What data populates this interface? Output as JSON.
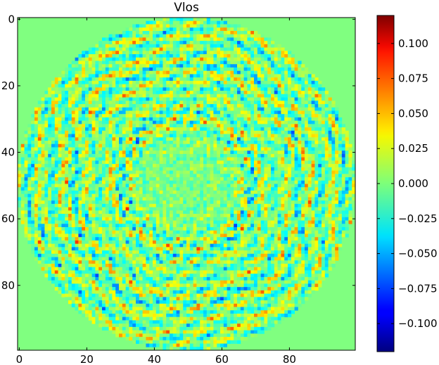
{
  "chart_data": {
    "type": "heatmap",
    "title": "Vlos",
    "xlabel": "",
    "ylabel": "",
    "grid": false,
    "colormap": "jet",
    "shape": [
      100,
      100
    ],
    "xlim": [
      -0.5,
      99.5
    ],
    "ylim": [
      99.5,
      -0.5
    ],
    "x_ticks": [
      0,
      20,
      40,
      60,
      80
    ],
    "y_ticks": [
      0,
      20,
      40,
      60,
      80
    ],
    "x_tick_labels": [
      "0",
      "20",
      "40",
      "60",
      "80"
    ],
    "y_tick_labels": [
      "0",
      "20",
      "40",
      "60",
      "80"
    ],
    "colorbar": {
      "range": [
        -0.12,
        0.12
      ],
      "ticks": [
        0.1,
        0.075,
        0.05,
        0.025,
        0.0,
        -0.025,
        -0.05,
        -0.075,
        -0.1
      ],
      "tick_labels": [
        "0.100",
        "0.075",
        "0.050",
        "0.025",
        "0.000",
        "−0.025",
        "−0.050",
        "−0.075",
        "−0.100"
      ]
    },
    "pattern": {
      "disk_center": [
        49.5,
        49.5
      ],
      "disk_radius": 50,
      "background_value": 0.0,
      "description_values": "zero outside circular aperture; oscillating positive/negative values inside, strongest in rings near radius ~20 and ~35, weak near center"
    }
  }
}
